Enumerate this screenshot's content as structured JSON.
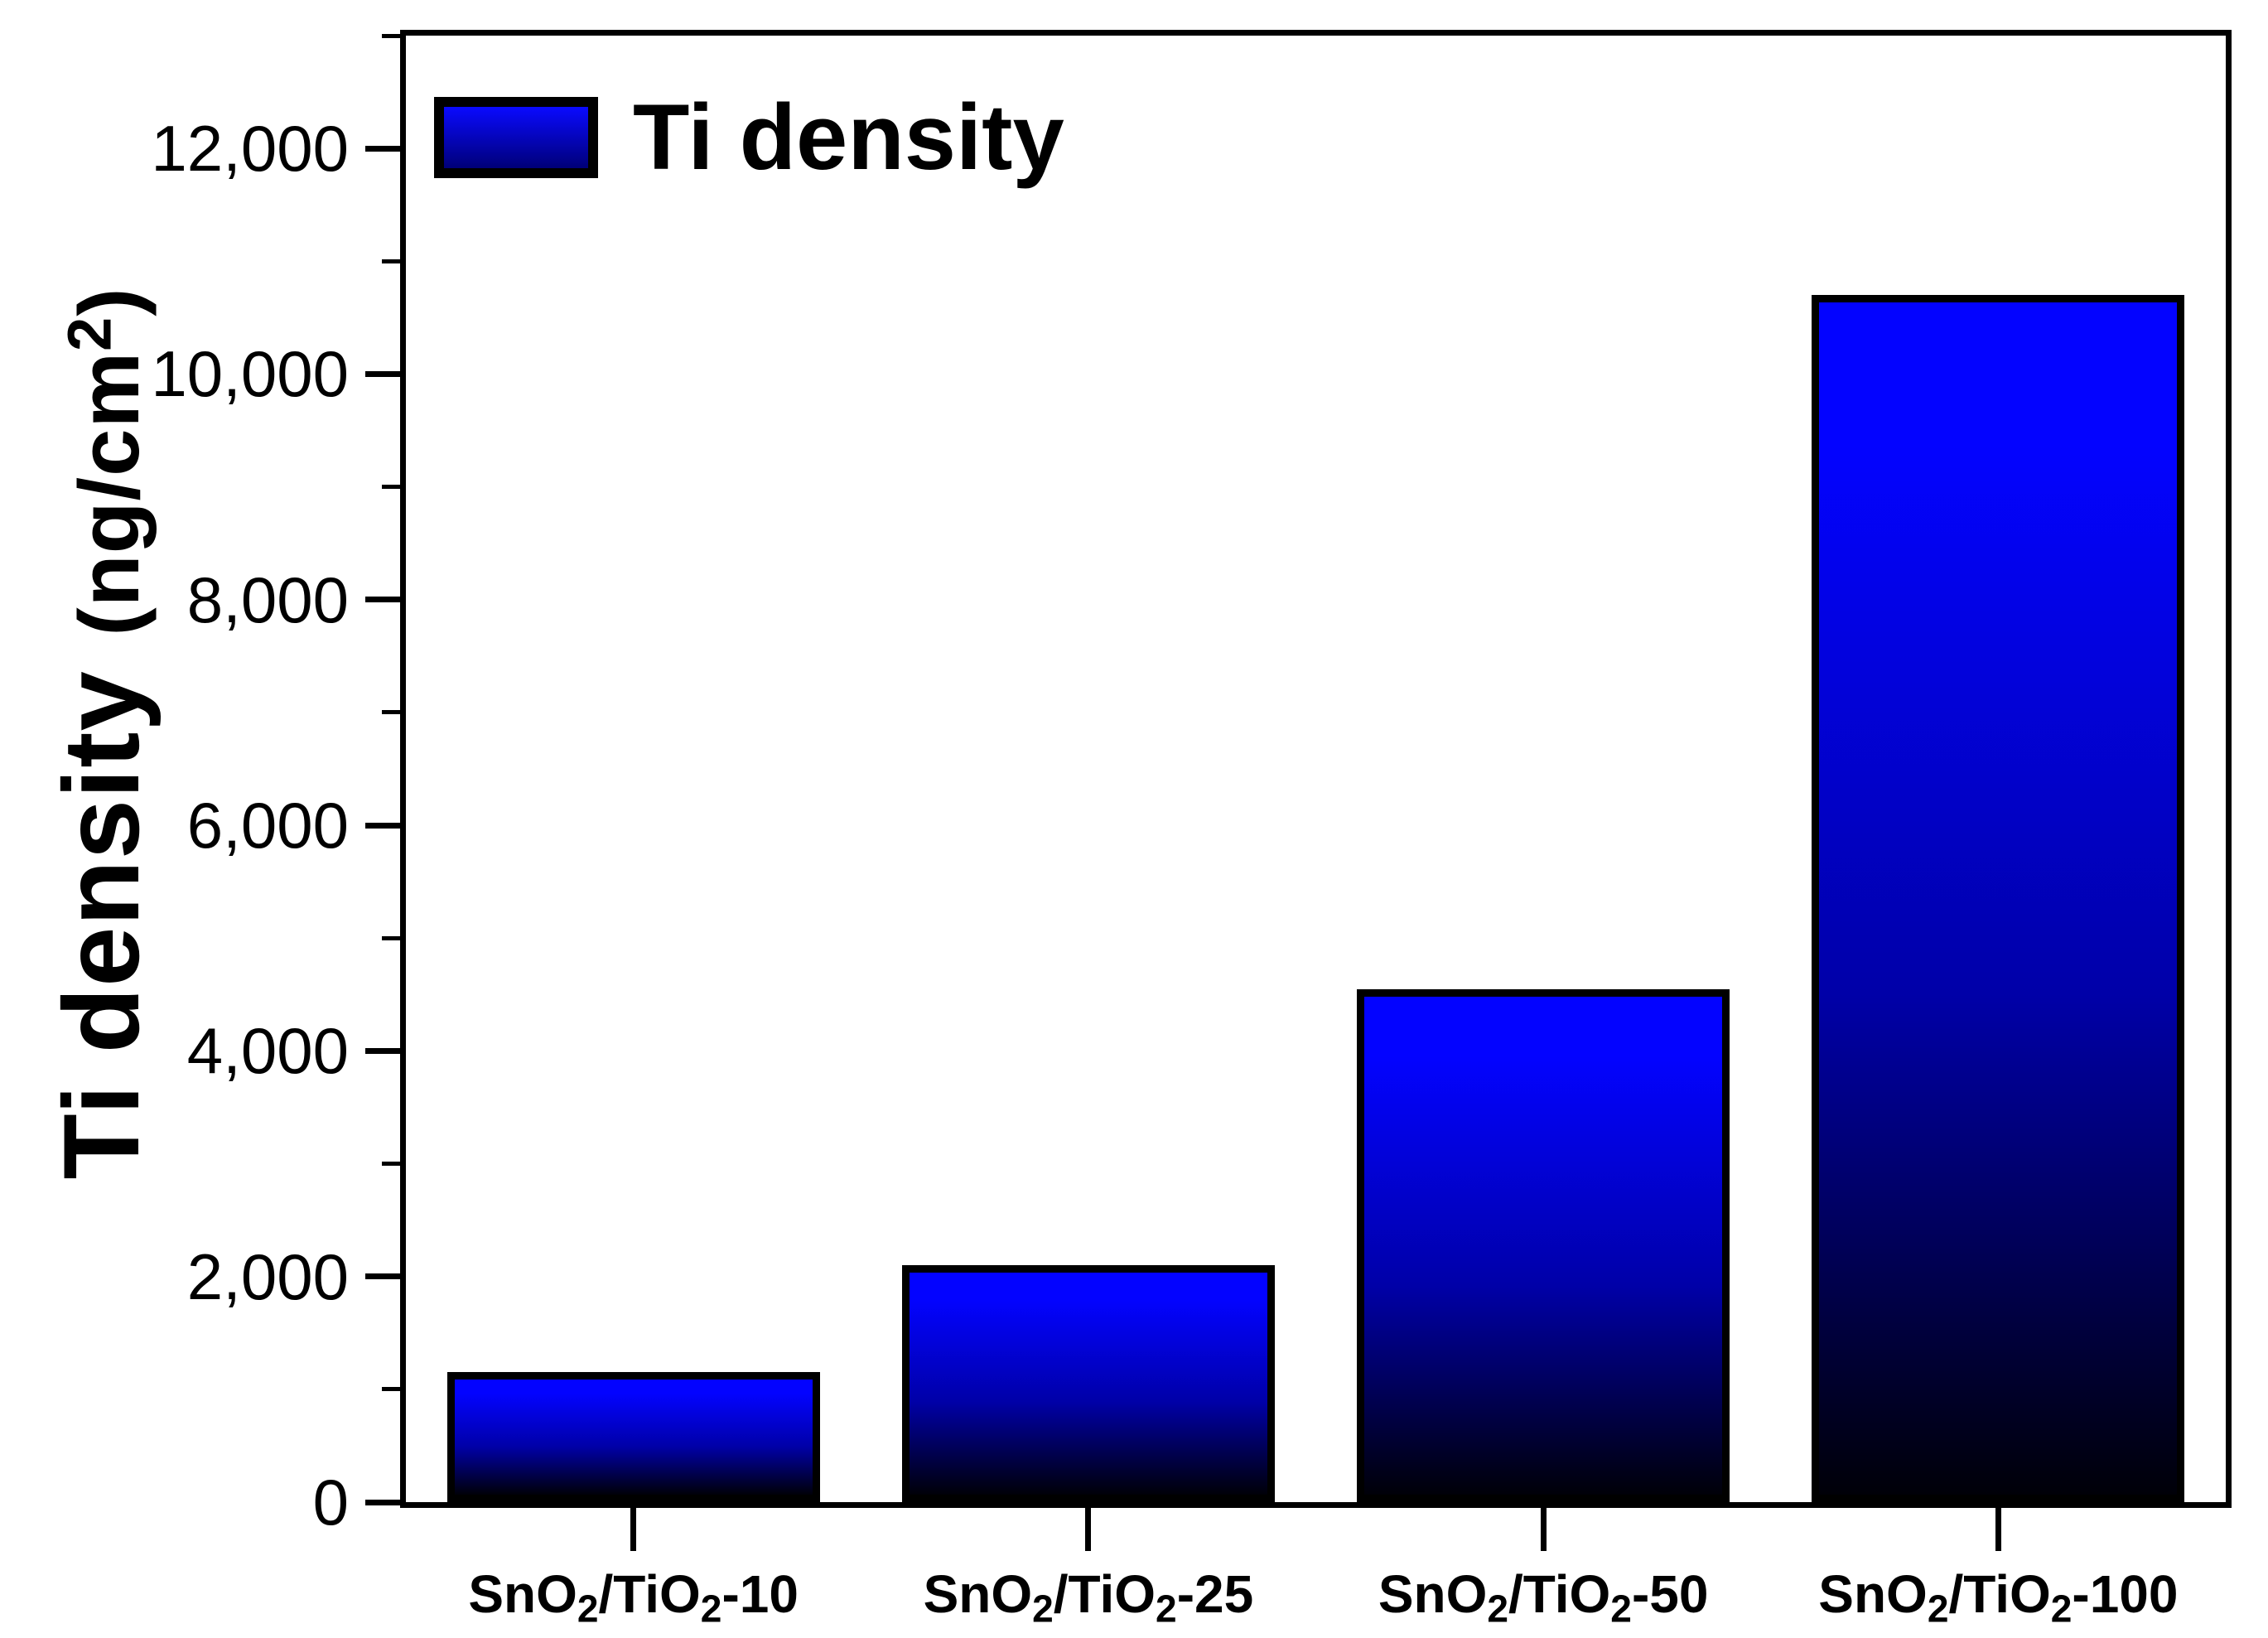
{
  "figure": {
    "background": "#ffffff",
    "frame_color": "#000000"
  },
  "legend": {
    "label": "Ti density",
    "swatch_top_color": "#0a0aff",
    "swatch_bottom_color": "#000078",
    "position": "top-left"
  },
  "axes": {
    "y": {
      "title_main": "Ti density",
      "title_unit": "(ng/cm^2^)",
      "tick_labels": [
        "0",
        "2,000",
        "4,000",
        "6,000",
        "8,000",
        "10,000",
        "12,000"
      ],
      "range": [
        0,
        13000
      ],
      "major_step": 2000,
      "minor_step": 1000
    },
    "x": {
      "categories_display": [
        "SnO~2~/TiO~2~-10",
        "SnO~2~/TiO~2~-25",
        "SnO~2~/TiO~2~-50",
        "SnO~2~/TiO~2~-100"
      ]
    }
  },
  "chart_data": {
    "type": "bar",
    "title": "",
    "xlabel": "",
    "ylabel": "Ti density (ng/cm2)",
    "categories": [
      "SnO2/TiO2-10",
      "SnO2/TiO2-25",
      "SnO2/TiO2-50",
      "SnO2/TiO2-100"
    ],
    "values": [
      1150,
      2100,
      4550,
      10700
    ],
    "ylim": [
      0,
      13000
    ],
    "ytick_step": 2000,
    "yminor_step": 1000,
    "grid": false,
    "legend_entries": [
      "Ti density"
    ],
    "legend_position": "top-left",
    "bar_gradient_top": "#0303ff",
    "bar_gradient_mid": "#0000a8",
    "bar_gradient_bottom": "#000008",
    "bar_border_color": "#000000"
  }
}
